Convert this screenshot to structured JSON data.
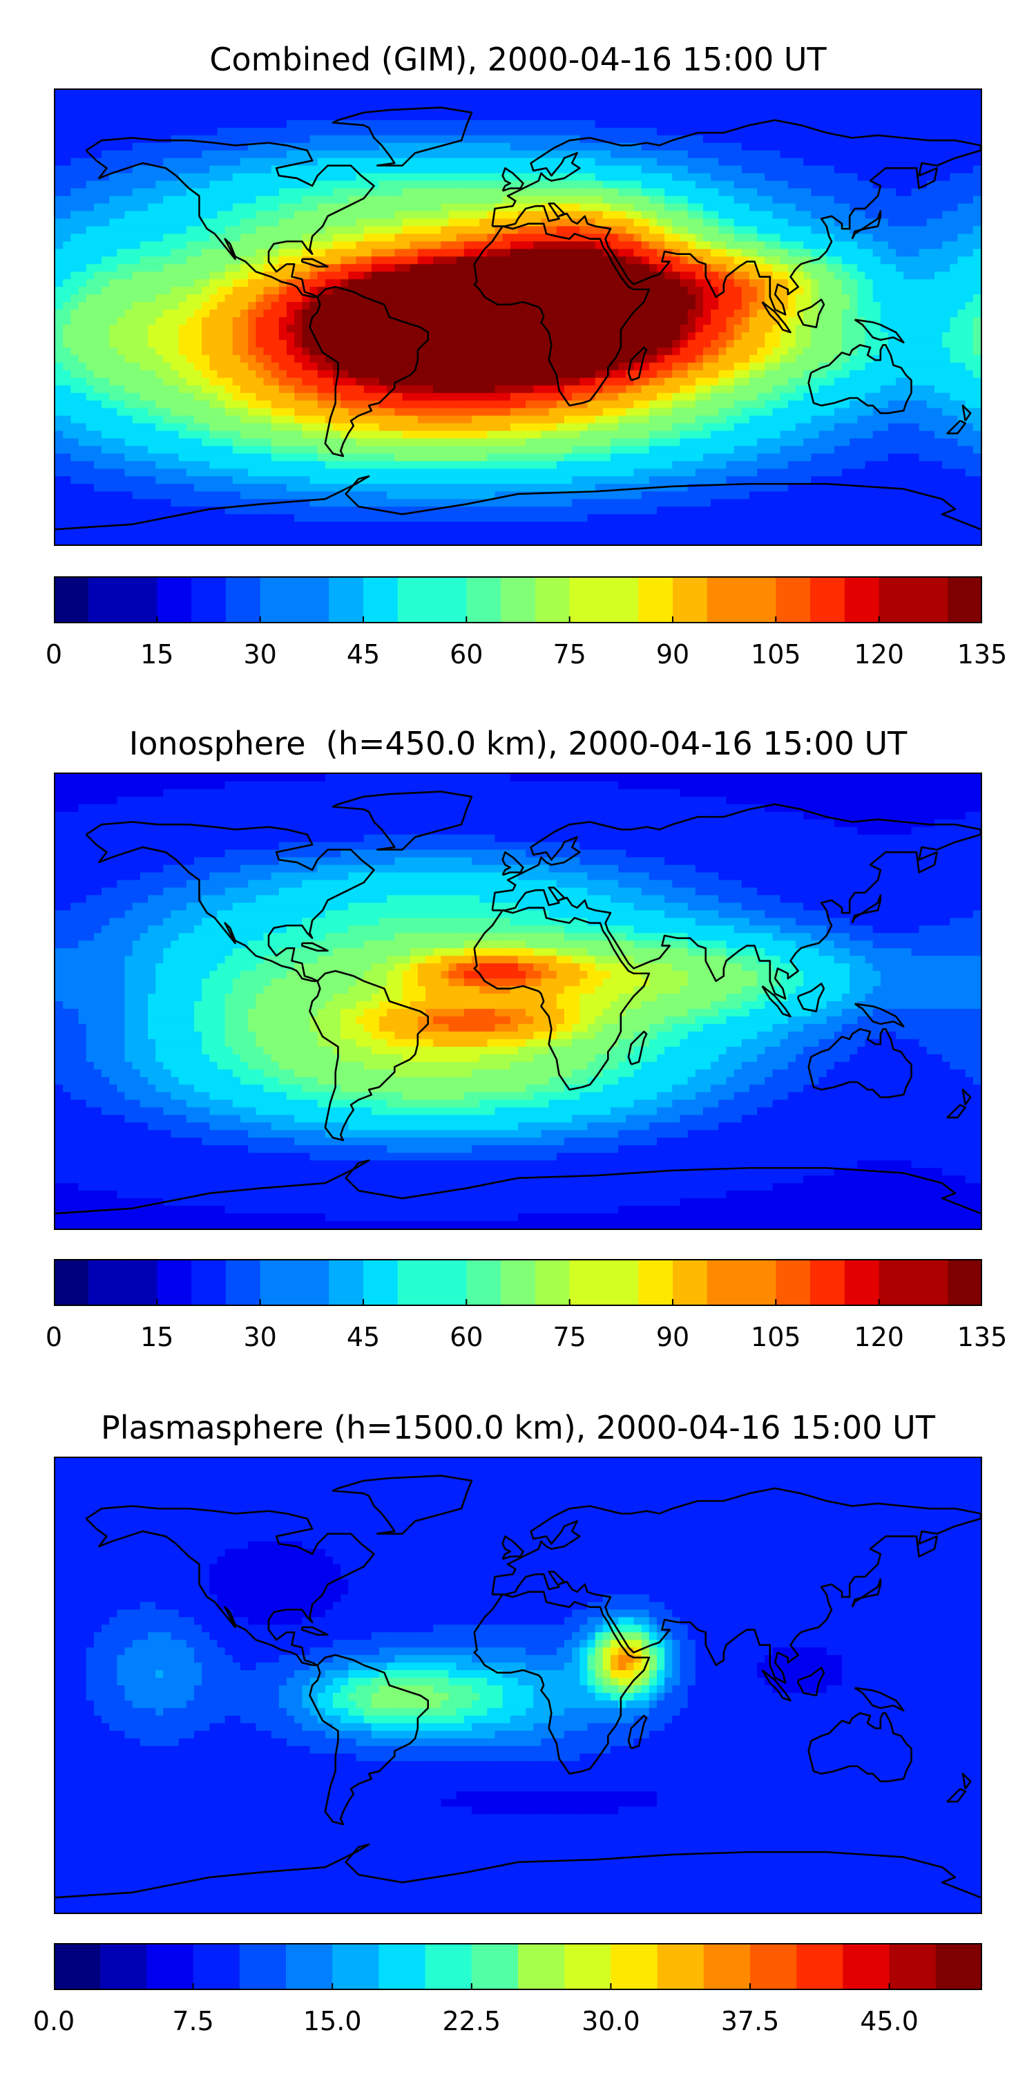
{
  "colors": {
    "jet": [
      "#00007f",
      "#0000b5",
      "#0000f1",
      "#0020ff",
      "#0050ff",
      "#0080ff",
      "#00adff",
      "#00ddff",
      "#26ffd0",
      "#53ffa3",
      "#80ff77",
      "#a6ff4a",
      "#d3ff23",
      "#ffe800",
      "#ffb900",
      "#ff8a00",
      "#ff5c00",
      "#ff2d00",
      "#e30000",
      "#ad0000",
      "#7f0000"
    ],
    "coastline": "#000000",
    "frame": "#000000"
  },
  "chart_data": [
    {
      "type": "heatmap",
      "projection": "equirectangular",
      "title": "Combined (GIM), 2000-04-16 15:00 UT",
      "colorbar": {
        "min": 0,
        "max": 135,
        "step": 5,
        "tick_values": [
          0,
          15,
          30,
          45,
          60,
          75,
          90,
          105,
          120,
          135
        ],
        "tick_labels": [
          "0",
          "15",
          "30",
          "45",
          "60",
          "75",
          "90",
          "105",
          "120",
          "135"
        ]
      },
      "background_value": 20,
      "features": [
        {
          "lon": -30,
          "lat": 0,
          "value": 62,
          "sx": 120,
          "sy": 40
        },
        {
          "lon": -8,
          "lat": 3,
          "value": 98,
          "sx": 55,
          "sy": 16
        },
        {
          "lon": -30,
          "lat": -28,
          "value": 48,
          "sx": 75,
          "sy": 22
        },
        {
          "lon": 28,
          "lat": 30,
          "value": 35,
          "sx": 28,
          "sy": 14
        },
        {
          "lon": 90,
          "lat": 14,
          "value": 28,
          "sx": 30,
          "sy": 10
        },
        {
          "lon": -35,
          "lat": 48,
          "value": 15,
          "sx": 60,
          "sy": 14
        },
        {
          "lon": 80,
          "lat": -12,
          "value": 14,
          "sx": 70,
          "sy": 12
        },
        {
          "lon": -160,
          "lat": 0,
          "value": 10,
          "sx": 18,
          "sy": 18
        }
      ]
    },
    {
      "type": "heatmap",
      "projection": "equirectangular",
      "title": "Ionosphere  (h=450.0 km), 2000-04-16 15:00 UT",
      "colorbar": {
        "min": 0,
        "max": 135,
        "step": 5,
        "tick_values": [
          0,
          15,
          30,
          45,
          60,
          75,
          90,
          105,
          120,
          135
        ],
        "tick_labels": [
          "0",
          "15",
          "30",
          "45",
          "60",
          "75",
          "90",
          "105",
          "120",
          "135"
        ]
      },
      "background_value": 18,
      "features": [
        {
          "lon": -38,
          "lat": 2,
          "value": 54,
          "sx": 100,
          "sy": 34
        },
        {
          "lon": -10,
          "lat": 12,
          "value": 36,
          "sx": 22,
          "sy": 6
        },
        {
          "lon": -15,
          "lat": -8,
          "value": 28,
          "sx": 28,
          "sy": 6
        },
        {
          "lon": -30,
          "lat": -30,
          "value": 22,
          "sx": 65,
          "sy": 18
        },
        {
          "lon": 70,
          "lat": 10,
          "value": 26,
          "sx": 55,
          "sy": 12
        },
        {
          "lon": -30,
          "lat": 45,
          "value": 10,
          "sx": 55,
          "sy": 12
        },
        {
          "lon": -160,
          "lat": 0,
          "value": -8,
          "sx": 22,
          "sy": 18
        }
      ]
    },
    {
      "type": "heatmap",
      "projection": "equirectangular",
      "title": "Plasmasphere (h=1500.0 km), 2000-04-16 15:00 UT",
      "colorbar": {
        "min": 0,
        "max": 50,
        "step": 2.5,
        "tick_values": [
          0,
          7.5,
          15,
          22.5,
          30,
          37.5,
          45
        ],
        "tick_labels": [
          "0.0",
          "7.5",
          "15.0",
          "22.5",
          "30.0",
          "37.5",
          "45.0"
        ]
      },
      "background_value": 9,
      "features": [
        {
          "lon": 42,
          "lat": 10,
          "value": 28,
          "sx": 10,
          "sy": 10
        },
        {
          "lon": -50,
          "lat": -5,
          "value": 15,
          "sx": 25,
          "sy": 10
        },
        {
          "lon": -5,
          "lat": -5,
          "value": 8,
          "sx": 30,
          "sy": 14
        },
        {
          "lon": -140,
          "lat": 5,
          "value": 6,
          "sx": 15,
          "sy": 15
        },
        {
          "lon": 110,
          "lat": 6,
          "value": -4,
          "sx": 12,
          "sy": 7
        },
        {
          "lon": -95,
          "lat": 40,
          "value": -4,
          "sx": 20,
          "sy": 12
        },
        {
          "lon": 10,
          "lat": -45,
          "value": -2,
          "sx": 60,
          "sy": 8
        }
      ]
    }
  ]
}
